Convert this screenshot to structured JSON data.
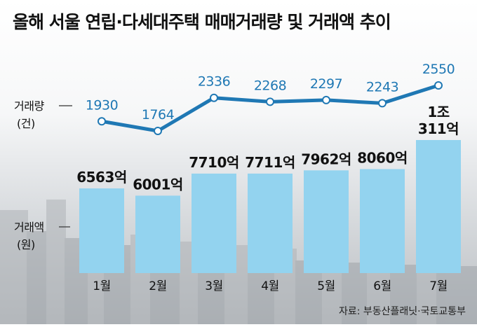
{
  "title": "올해 서울 연립·다세대주택 매매거래량 및 거래액 추이",
  "source": "자료: 부동산플래닛·국토교통부",
  "colors": {
    "line": "#1f78b4",
    "line_label": "#1f78b4",
    "bar": "#93d3ef",
    "text": "#111111"
  },
  "chart_data": {
    "type": "bar",
    "categories": [
      "1월",
      "2월",
      "3월",
      "4월",
      "5월",
      "6월",
      "7월"
    ],
    "series": [
      {
        "name": "거래량",
        "unit": "(건)",
        "type": "line",
        "values": [
          1930,
          1764,
          2336,
          2268,
          2297,
          2243,
          2550
        ],
        "labels": [
          "1930",
          "1764",
          "2336",
          "2268",
          "2297",
          "2243",
          "2550"
        ]
      },
      {
        "name": "거래액",
        "unit": "(원)",
        "type": "bar",
        "values": [
          6563,
          6001,
          7710,
          7711,
          7962,
          8060,
          10311
        ],
        "value_unit": "억 원",
        "labels": [
          "6563억",
          "6001억",
          "7710억",
          "7711억",
          "7962억",
          "8060억",
          "1조\n311억"
        ]
      }
    ]
  }
}
